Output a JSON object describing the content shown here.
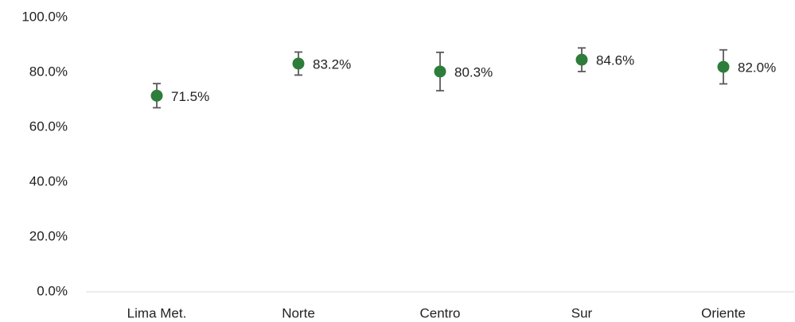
{
  "chart_data": {
    "type": "errorbar",
    "categories": [
      "Lima Met.",
      "Norte",
      "Centro",
      "Sur",
      "Oriente"
    ],
    "values": [
      71.5,
      83.2,
      80.3,
      84.6,
      82.0
    ],
    "value_labels": [
      "71.5%",
      "83.2%",
      "80.3%",
      "84.6%",
      "82.0%"
    ],
    "errors": [
      4.4,
      4.2,
      7.0,
      4.3,
      6.2
    ],
    "color": "#2e7d3a",
    "error_color": "#595959",
    "ylim": [
      0,
      100
    ],
    "yticks": [
      {
        "value": 0,
        "label": "0.0%"
      },
      {
        "value": 20,
        "label": "20.0%"
      },
      {
        "value": 40,
        "label": "40.0%"
      },
      {
        "value": 60,
        "label": "60.0%"
      },
      {
        "value": 80,
        "label": "80.0%"
      },
      {
        "value": 100,
        "label": "100.0%"
      }
    ],
    "grid": false
  }
}
